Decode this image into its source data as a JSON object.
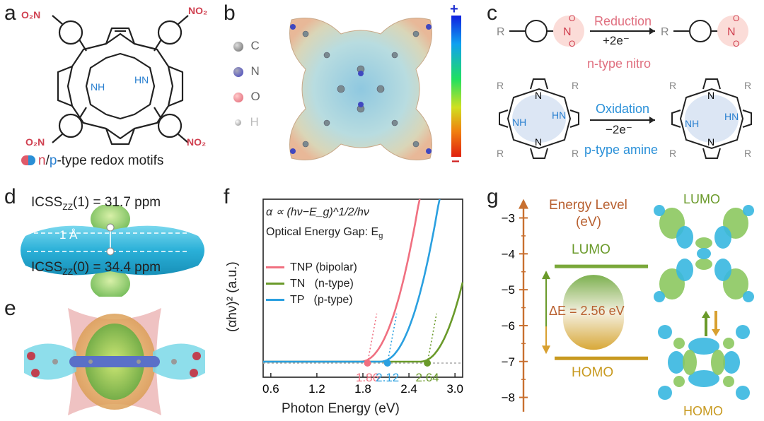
{
  "panels": {
    "a": "a",
    "b": "b",
    "c": "c",
    "d": "d",
    "e": "e",
    "f": "f",
    "g": "g"
  },
  "panel_a": {
    "no2_label": "O₂N",
    "no2_label_right": "NO₂",
    "nh": "NH",
    "hn": "HN",
    "caption_n": "n",
    "caption_slash": "/",
    "caption_p": "p",
    "caption_rest": "-type redox motifs",
    "colors": {
      "n_type": "#e05a6a",
      "p_type": "#2a8fd6"
    }
  },
  "panel_b": {
    "legend": [
      {
        "symbol": "C",
        "color": "#666666"
      },
      {
        "symbol": "N",
        "color": "#4040c0"
      },
      {
        "symbol": "O",
        "color": "#e06070"
      },
      {
        "symbol": "H",
        "color": "#bbbbbb"
      }
    ],
    "scale_plus": "+",
    "scale_minus": "−"
  },
  "panel_c": {
    "reduction": "Reduction",
    "plus2e": "+2e⁻",
    "ntype_nitro": "n-type nitro",
    "oxidation": "Oxidation",
    "minus2e": "−2e⁻",
    "ptype_amine": "p-type amine",
    "r": "R",
    "nh": "NH",
    "hn": "HN",
    "n": "N"
  },
  "panel_d": {
    "top_label": "ICSS",
    "top_sub": "ZZ",
    "top_value": "(1) = 31.7 ppm",
    "bottom_label": "ICSS",
    "bottom_sub": "ZZ",
    "bottom_value": "(0) = 34.4 ppm",
    "distance": "1 Å"
  },
  "panel_f": {
    "formula": "α ∝ (hν−E_g)^1/2/hν",
    "gap_label": "Optical Energy Gap: E",
    "gap_sub": "g",
    "xlabel": "Photon Energy (eV)",
    "ylabel": "(αhν)² (a.u.)"
  },
  "chart_data": {
    "type": "line",
    "xlabel": "Photon Energy (eV)",
    "ylabel": "(αhν)² (a.u.)",
    "xlim": [
      0.5,
      3.1
    ],
    "x_ticks": [
      "0.6",
      "1.2",
      "1.8",
      "2.4",
      "3.0"
    ],
    "x_tick_values": [
      0.6,
      1.2,
      1.8,
      2.4,
      3.0
    ],
    "legend_position": "middle-left",
    "series": [
      {
        "name": "TNP (bipolar)",
        "color": "#f07080",
        "gap": 1.86,
        "gap_label": "1.86"
      },
      {
        "name": "TN   (n-type)",
        "color": "#6a9a2a",
        "gap": 2.64,
        "gap_label": "2.64"
      },
      {
        "name": "TP   (p-type)",
        "color": "#2aa0e0",
        "gap": 2.12,
        "gap_label": "2.12"
      }
    ]
  },
  "panel_g": {
    "title_line1": "Energy Level",
    "title_line2": "(eV)",
    "ticks": [
      "−3",
      "−4",
      "−5",
      "−6",
      "−7",
      "−8"
    ],
    "tick_values": [
      -3,
      -4,
      -5,
      -6,
      -7,
      -8
    ],
    "lumo": "LUMO",
    "homo": "HOMO",
    "delta_e": "ΔE = 2.56 eV",
    "lumo_level": -4.35,
    "homo_level": -6.91,
    "orbital_lumo": "LUMO",
    "orbital_homo": "HOMO"
  }
}
